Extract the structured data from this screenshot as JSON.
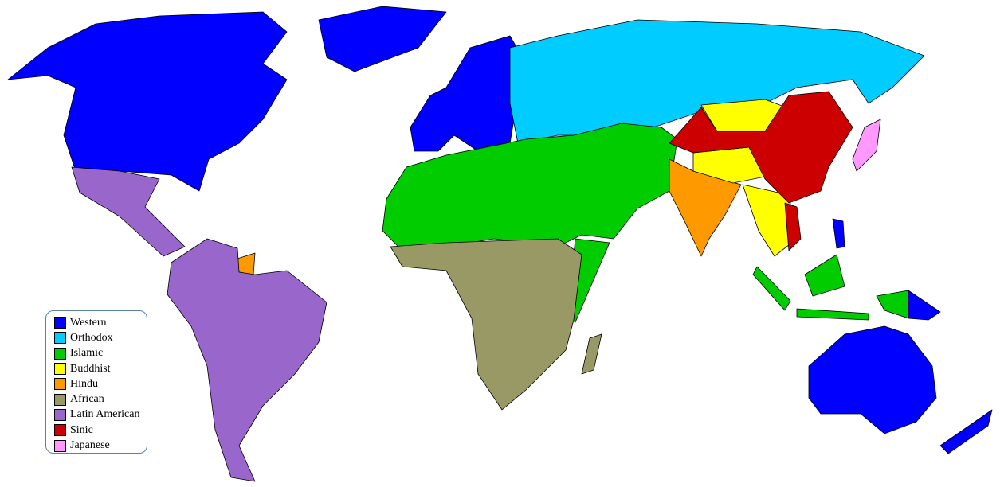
{
  "legend": {
    "items": [
      {
        "label": "Western",
        "color": "#0000FF"
      },
      {
        "label": "Orthodox",
        "color": "#00CCFF"
      },
      {
        "label": "Islamic",
        "color": "#00CC00"
      },
      {
        "label": "Buddhist",
        "color": "#FFFF00"
      },
      {
        "label": "Hindu",
        "color": "#FF9900"
      },
      {
        "label": "African",
        "color": "#999966"
      },
      {
        "label": "Latin American",
        "color": "#9966CC"
      },
      {
        "label": "Sinic",
        "color": "#CC0000"
      },
      {
        "label": "Japanese",
        "color": "#FF99FF"
      }
    ]
  }
}
